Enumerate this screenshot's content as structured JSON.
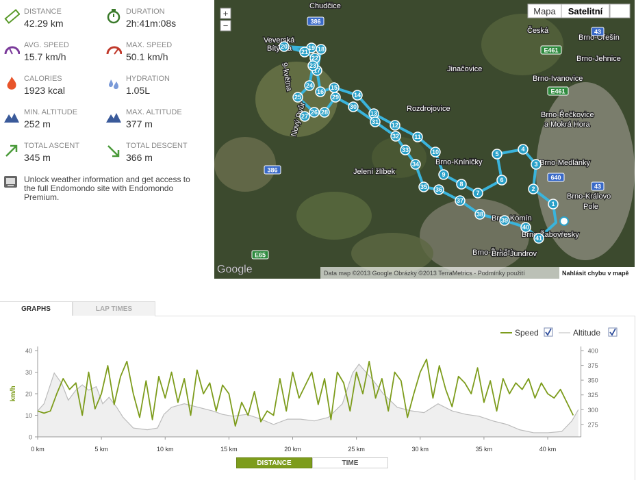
{
  "stats": [
    {
      "label": "DISTANCE",
      "value": "42.29 km"
    },
    {
      "label": "DURATION",
      "value": "2h:41m:08s"
    },
    {
      "label": "AVG. SPEED",
      "value": "15.7 km/h"
    },
    {
      "label": "MAX. SPEED",
      "value": "50.1 km/h"
    },
    {
      "label": "CALORIES",
      "value": "1923 kcal"
    },
    {
      "label": "HYDRATION",
      "value": "1.05L"
    },
    {
      "label": "MIN. ALTITUDE",
      "value": "252 m"
    },
    {
      "label": "MAX. ALTITUDE",
      "value": "377 m"
    },
    {
      "label": "TOTAL ASCENT",
      "value": "345 m"
    },
    {
      "label": "TOTAL DESCENT",
      "value": "366 m"
    }
  ],
  "promo": "Unlock weather information and get access to the full Endomondo site with Endomondo Premium.",
  "map": {
    "map_types": [
      "Mapa",
      "Satelitní"
    ],
    "zoom": [
      "+",
      "−"
    ],
    "places": [
      "Chudčice",
      "Veverská",
      "Bítýška",
      "9-května",
      "Nový Dvůr",
      "Jinačovice",
      "Rozdrojovice",
      "Jelení žlíbek",
      "Brno-Kníničky",
      "Brno-Komín",
      "Brno-Žabovřesky",
      "Brno-Žebětín",
      "Brno-Jundrov",
      "Česká",
      "Brno-Ořešín",
      "Brno-Jehnice",
      "Brno-Ivanovice",
      "Brno-Řečkovice",
      "a Mokrá Hora",
      "Brno-Medlánky",
      "Brno-Královo",
      "Pole"
    ],
    "roads": [
      "386",
      "E461",
      "E461",
      "43",
      "640",
      "43",
      "386",
      "E65"
    ],
    "markers": [
      1,
      2,
      3,
      4,
      5,
      6,
      7,
      8,
      9,
      10,
      11,
      12,
      13,
      14,
      15,
      16,
      17,
      18,
      19,
      20,
      21,
      22,
      23,
      24,
      25,
      26,
      27,
      28,
      29,
      30,
      31,
      32,
      33,
      34,
      35,
      36,
      37,
      38,
      39,
      40,
      41
    ],
    "attribution": "Data map ©2013 Google Obrázky ©2013 TerraMetrics - Podmínky použití",
    "report": "Nahlásit chybu v mapě",
    "logo": "Google"
  },
  "tabs": [
    "GRAPHS",
    "LAP TIMES"
  ],
  "x_modes": [
    "DISTANCE",
    "TIME"
  ],
  "chart_data": {
    "type": "line",
    "y_label": "km/h",
    "xlim": [
      0,
      42.5
    ],
    "xticks": [
      {
        "value": 0,
        "label": "0 km"
      },
      {
        "value": 5,
        "label": "5 km"
      },
      {
        "value": 10,
        "label": "10 km"
      },
      {
        "value": 15,
        "label": "15 km"
      },
      {
        "value": 20,
        "label": "20 km"
      },
      {
        "value": 25,
        "label": "25 km"
      },
      {
        "value": 30,
        "label": "30 km"
      },
      {
        "value": 35,
        "label": "35 km"
      },
      {
        "value": 40,
        "label": "40 km"
      }
    ],
    "ylim": [
      0,
      40
    ],
    "yticks": [
      0,
      10,
      20,
      30,
      40
    ],
    "y2lim": [
      254,
      400
    ],
    "y2ticks": [
      275,
      300,
      325,
      350,
      375,
      400
    ],
    "series": [
      {
        "name": "Speed",
        "color": "#7d9c1c",
        "x": [
          0,
          0.5,
          1,
          1.5,
          2,
          2.5,
          3,
          3.5,
          4,
          4.5,
          5,
          5.5,
          6,
          6.5,
          7,
          7.5,
          8,
          8.5,
          9,
          9.5,
          10,
          10.5,
          11,
          11.5,
          12,
          12.5,
          13,
          13.5,
          14,
          14.5,
          15,
          15.5,
          16,
          16.5,
          17,
          17.5,
          18,
          18.5,
          19,
          19.5,
          20,
          20.5,
          21,
          21.5,
          22,
          22.5,
          23,
          23.5,
          24,
          24.5,
          25,
          25.5,
          26,
          26.5,
          27,
          27.5,
          28,
          28.5,
          29,
          29.5,
          30,
          30.5,
          31,
          31.5,
          32,
          32.5,
          33,
          33.5,
          34,
          34.5,
          35,
          35.5,
          36,
          36.5,
          37,
          37.5,
          38,
          38.5,
          39,
          39.5,
          40,
          40.5,
          41,
          41.5,
          42
        ],
        "values": [
          12,
          11,
          12,
          20,
          27,
          22,
          25,
          10,
          30,
          13,
          20,
          33,
          15,
          28,
          35,
          20,
          9,
          26,
          8,
          28,
          18,
          30,
          16,
          27,
          10,
          31,
          20,
          25,
          12,
          24,
          20,
          5,
          16,
          10,
          21,
          7,
          12,
          10,
          27,
          12,
          30,
          18,
          24,
          30,
          15,
          27,
          8,
          30,
          25,
          12,
          30,
          20,
          35,
          18,
          27,
          12,
          30,
          26,
          9,
          20,
          30,
          36,
          18,
          33,
          22,
          14,
          28,
          25,
          20,
          32,
          16,
          26,
          12,
          27,
          20,
          25,
          22,
          27,
          18,
          25,
          20,
          18,
          22,
          16,
          10
        ]
      },
      {
        "name": "Altitude",
        "color": "#bbbbbb",
        "axis": "y2",
        "x": [
          0,
          0.5,
          1.3,
          1.9,
          2.4,
          3.0,
          3.5,
          4.0,
          4.6,
          5.1,
          5.6,
          6.2,
          6.7,
          7.5,
          8.6,
          9.4,
          9.9,
          10.5,
          11.5,
          12.6,
          13.7,
          14.5,
          15.3,
          16.4,
          17.5,
          18.5,
          19.6,
          20.6,
          21.7,
          22.8,
          23.9,
          24.7,
          25.2,
          25.8,
          26.3,
          27.1,
          28.2,
          29.3,
          30.3,
          31.4,
          32.5,
          33.6,
          34.6,
          35.7,
          36.8,
          37.8,
          38.9,
          40.0,
          41.1,
          41.9,
          42.4
        ],
        "values": [
          298,
          310,
          362,
          344,
          316,
          333,
          342,
          333,
          339,
          310,
          321,
          304,
          287,
          269,
          266,
          269,
          292,
          304,
          310,
          304,
          298,
          292,
          289,
          292,
          284,
          275,
          284,
          284,
          281,
          287,
          310,
          362,
          377,
          362,
          350,
          327,
          304,
          298,
          295,
          310,
          298,
          292,
          289,
          281,
          275,
          266,
          261,
          261,
          263,
          281,
          300
        ]
      }
    ]
  }
}
